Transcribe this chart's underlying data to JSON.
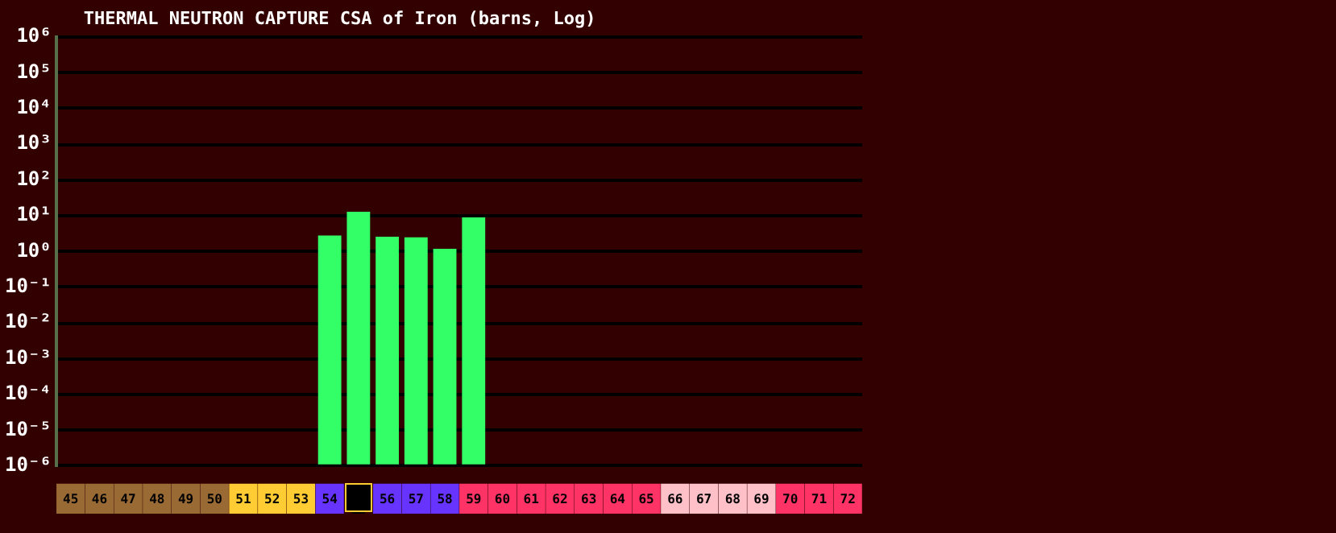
{
  "chart_data": {
    "type": "bar",
    "title": "THERMAL NEUTRON CAPTURE CSA of Iron (barns, Log)",
    "categories": [
      "45",
      "46",
      "47",
      "48",
      "49",
      "50",
      "51",
      "52",
      "53",
      "54",
      null,
      "56",
      "57",
      "58",
      "59",
      "60",
      "61",
      "62",
      "63",
      "64",
      "65",
      "66",
      "67",
      "68",
      "69",
      "70",
      "71",
      "72"
    ],
    "values": [
      null,
      null,
      null,
      null,
      null,
      null,
      null,
      null,
      null,
      2.8,
      13,
      2.6,
      2.5,
      1.2,
      9,
      null,
      null,
      null,
      null,
      null,
      null,
      null,
      null,
      null,
      null,
      null,
      null,
      null
    ],
    "color": "#33ff66",
    "log": true,
    "ylim": [
      1e-06,
      1000000.0
    ],
    "yticks": [
      {
        "value": 1e-06,
        "label": "10⁻⁶"
      },
      {
        "value": 1e-05,
        "label": "10⁻⁵"
      },
      {
        "value": 0.0001,
        "label": "10⁻⁴"
      },
      {
        "value": 0.001,
        "label": "10⁻³"
      },
      {
        "value": 0.01,
        "label": "10⁻²"
      },
      {
        "value": 0.1,
        "label": "10⁻¹"
      },
      {
        "value": 1,
        "label": "10⁰"
      },
      {
        "value": 10,
        "label": "10¹"
      },
      {
        "value": 100,
        "label": "10²"
      },
      {
        "value": 1000,
        "label": "10³"
      },
      {
        "value": 10000,
        "label": "10⁴"
      },
      {
        "value": 100000,
        "label": "10⁵"
      },
      {
        "value": 1000000,
        "label": "10⁶"
      }
    ],
    "grid": "y",
    "legend": false
  }
}
